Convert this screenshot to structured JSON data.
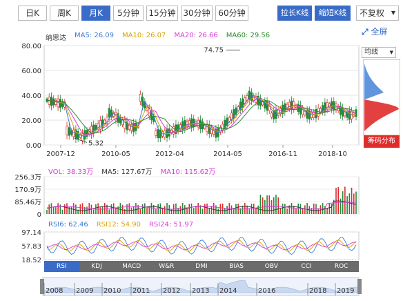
{
  "tabs": [
    "日K",
    "周K",
    "月K",
    "5分钟",
    "15分钟",
    "30分钟",
    "60分钟"
  ],
  "active_tab": "月K",
  "buttons": {
    "stretch": "拉长K线",
    "shorten": "缩短K线"
  },
  "adjust_select": "不复权",
  "fullscreen": "全屏",
  "stock_name": "纳思达",
  "ma_legend": [
    {
      "label": "MA5: 26.09",
      "color": "#3a7bd5"
    },
    {
      "label": "MA10: 26.07",
      "color": "#d9a100"
    },
    {
      "label": "MA20: 26.66",
      "color": "#d63bd6"
    },
    {
      "label": "MA60: 29.56",
      "color": "#2c8a2c"
    }
  ],
  "price_axis": [
    "80.00",
    "60.00",
    "40.00",
    "20.00",
    "0.00"
  ],
  "date_axis": [
    "2007-12",
    "2010-05",
    "2012-04",
    "2014-05",
    "2016-11",
    "2018-10"
  ],
  "annotations": {
    "high": "74.75",
    "low": "5.32"
  },
  "side_panel": {
    "select": "均线",
    "chip_button": "筹码分布"
  },
  "volume": {
    "legend": [
      {
        "label": "VOL: 38.33万",
        "color": "#d63bd6"
      },
      {
        "label": "MA5: 127.67万",
        "color": "#333333"
      },
      {
        "label": "MA10: 115.62万",
        "color": "#d63bd6"
      }
    ],
    "axis": [
      "256.3万",
      "170.9万",
      "85.46万",
      "0"
    ]
  },
  "rsi": {
    "legend": [
      {
        "label": "RSI6: 62.46",
        "color": "#3a7bd5"
      },
      {
        "label": "RSI12: 54.90",
        "color": "#d9a100"
      },
      {
        "label": "RSI24: 51.97",
        "color": "#d63bd6"
      }
    ],
    "axis": [
      "97.14",
      "57.83",
      "18.52"
    ]
  },
  "indicator_tabs": [
    "RSI",
    "KDJ",
    "MACD",
    "W&R",
    "DMI",
    "BIAS",
    "OBV",
    "CCI",
    "ROC"
  ],
  "active_indicator": "RSI",
  "timeline_years": [
    "2008",
    "2009",
    "2010",
    "2011",
    "2012",
    "2013",
    "2014",
    "2016",
    "2018",
    "2019"
  ]
}
